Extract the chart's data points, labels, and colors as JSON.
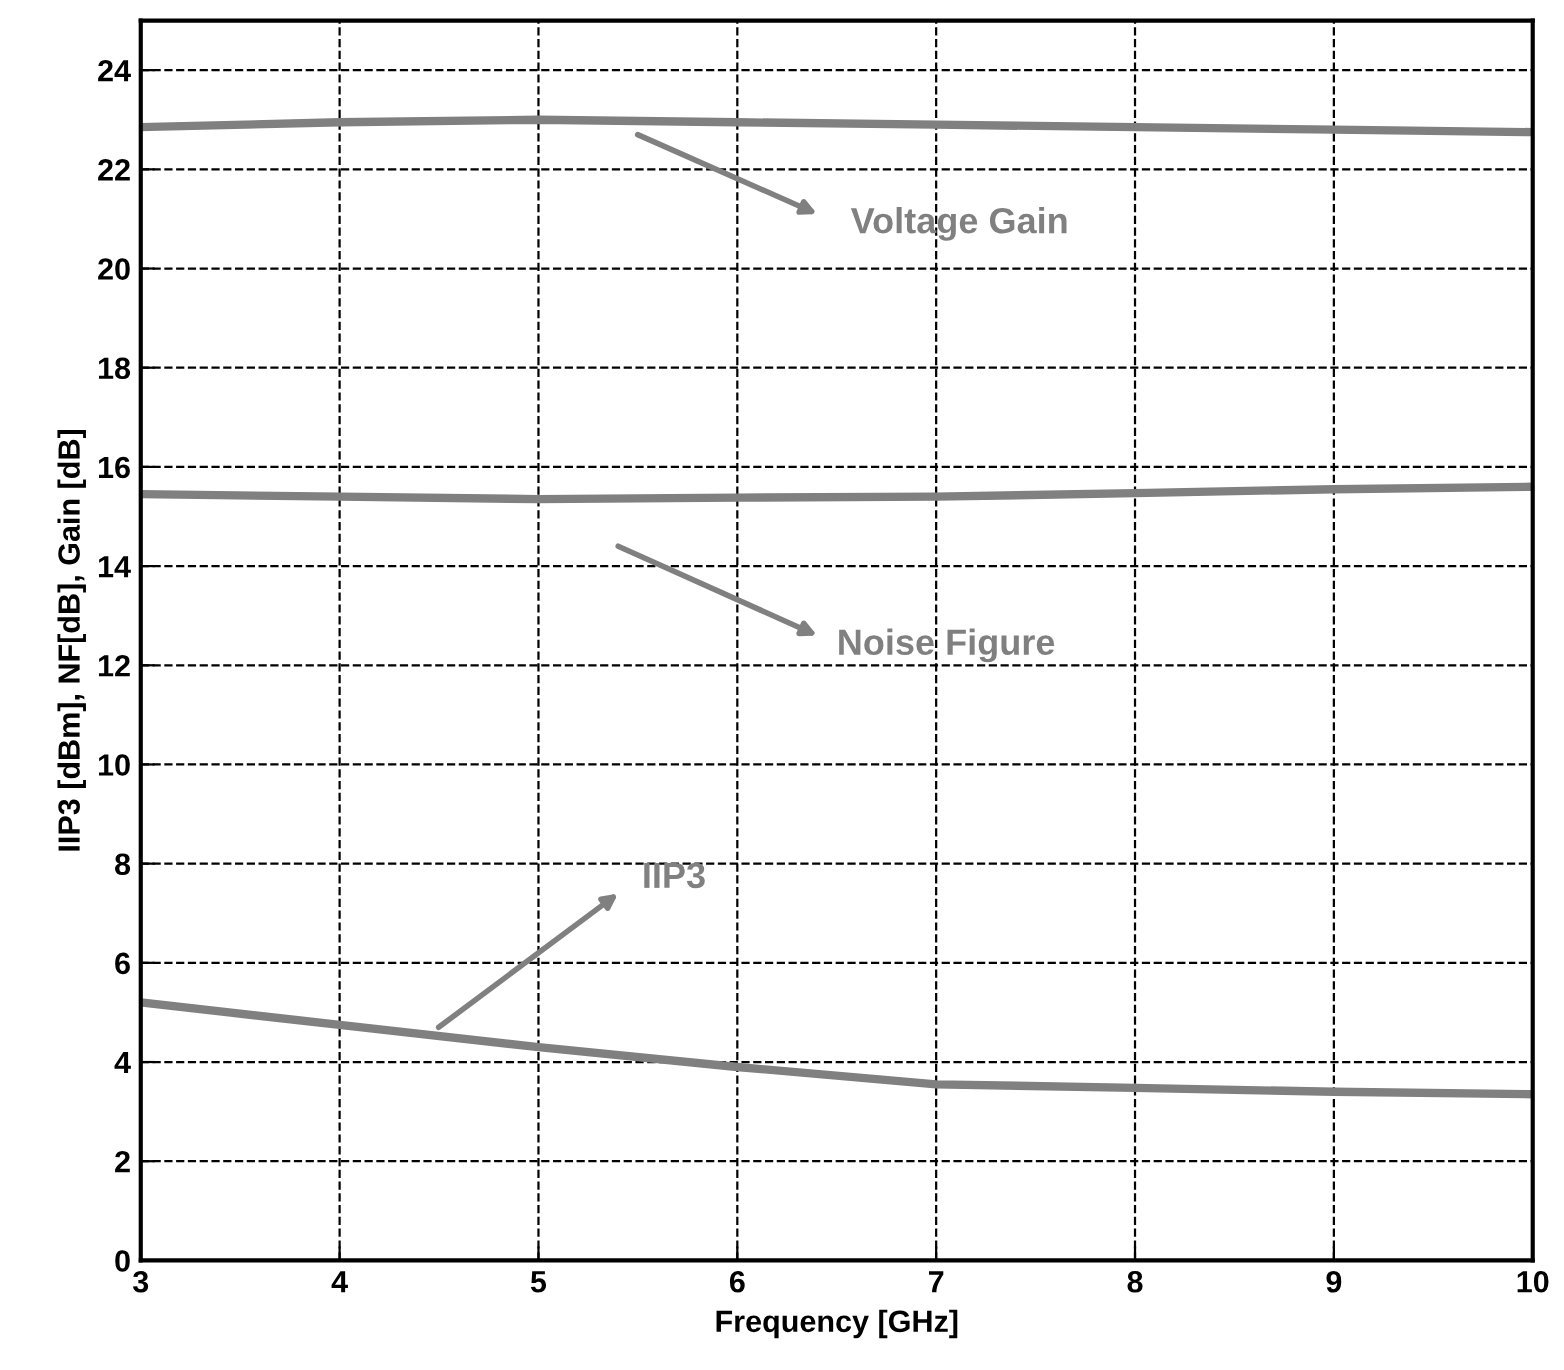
{
  "chart_data": {
    "type": "line",
    "xlabel": "Frequency [GHz]",
    "ylabel": "IIP3 [dBm], NF[dB], Gain [dB]",
    "xlim": [
      3,
      10
    ],
    "ylim": [
      0,
      25
    ],
    "xticks": [
      3,
      4,
      5,
      6,
      7,
      8,
      9,
      10
    ],
    "yticks": [
      0,
      2,
      4,
      6,
      8,
      10,
      12,
      14,
      16,
      18,
      20,
      22,
      24
    ],
    "grid": true,
    "marker": "none",
    "series": [
      {
        "color": "#808080",
        "x": [
          3,
          4,
          5,
          6,
          7,
          8,
          9,
          10
        ],
        "values": [
          22.85,
          22.95,
          23.0,
          22.95,
          22.9,
          22.85,
          22.8,
          22.75
        ]
      },
      {
        "color": "#808080",
        "x": [
          3,
          4,
          5,
          6,
          7,
          8,
          9,
          10
        ],
        "values": [
          15.45,
          15.4,
          15.35,
          15.38,
          15.4,
          15.47,
          15.55,
          15.6
        ]
      },
      {
        "color": "#808080",
        "x": [
          3,
          4,
          5,
          6,
          7,
          8,
          9,
          10
        ],
        "values": [
          5.2,
          4.75,
          4.3,
          3.9,
          3.55,
          3.48,
          3.4,
          3.35
        ]
      }
    ],
    "annotations": [
      "Voltage Gain",
      "Noise Figure",
      "IIP3"
    ]
  }
}
